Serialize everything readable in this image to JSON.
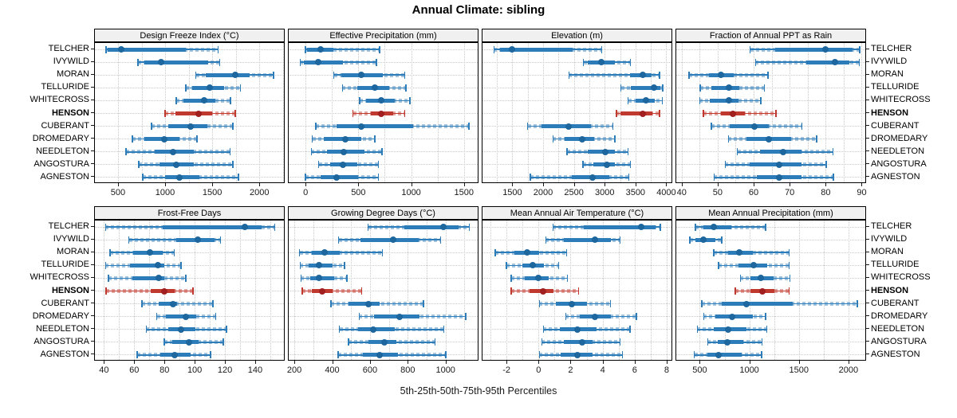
{
  "title": "Annual Climate: sibling",
  "caption": "5th-25th-50th-75th-95th Percentiles",
  "colors": {
    "blue_line": "#2b7cb9",
    "blue_dot": "#1d669e",
    "blue_band": "rgba(49,124,183,0.45)",
    "red_line": "#c0392f",
    "red_dot": "#a02020",
    "red_band": "rgba(192,57,47,0.45)",
    "grid": "#c8c8c8",
    "strip_bg": "#f0f0f0",
    "border": "#000000"
  },
  "chart_data": {
    "type": "horizontal-percentile-range (dot + box + whisker), 2x4 trellis panels",
    "percentiles": [
      "5th",
      "25th",
      "50th",
      "75th",
      "95th"
    ],
    "stations": [
      "TELCHER",
      "IVYWILD",
      "MORAN",
      "TELLURIDE",
      "WHITECROSS",
      "HENSON",
      "CUBERANT",
      "DROMEDARY",
      "NEEDLETON",
      "ANGOSTURA",
      "AGNESTON"
    ],
    "highlight_station": "HENSON",
    "legend_note": "values per station are [p5,p25,p50,p75,p95]",
    "panels": [
      {
        "title": "Design Freeze Index (°C)",
        "ticks": [
          500,
          1000,
          1500,
          2000
        ],
        "xlim": [
          255,
          2260
        ],
        "values": [
          [
            375,
            390,
            535,
            1220,
            1560
          ],
          [
            710,
            780,
            955,
            1460,
            1580
          ],
          [
            1327,
            1430,
            1745,
            1900,
            2152
          ],
          [
            1220,
            1290,
            1470,
            1625,
            1800
          ],
          [
            1119,
            1194,
            1411,
            1530,
            1694
          ],
          [
            1000,
            1110,
            1355,
            1500,
            1745
          ],
          [
            855,
            1030,
            1272,
            1444,
            1717
          ],
          [
            653,
            778,
            995,
            1153,
            1339
          ],
          [
            583,
            888,
            1088,
            1305,
            1689
          ],
          [
            722,
            944,
            1119,
            1305,
            1717
          ],
          [
            764,
            1000,
            1153,
            1360,
            1777
          ]
        ]
      },
      {
        "title": "Effective Precipitation (mm)",
        "ticks": [
          0,
          500,
          1000,
          1500
        ],
        "xlim": [
          -160,
          1630
        ],
        "values": [
          [
            0,
            15,
            140,
            265,
            700
          ],
          [
            -52,
            -20,
            117,
            350,
            670
          ],
          [
            268,
            340,
            530,
            730,
            938
          ],
          [
            348,
            490,
            655,
            790,
            950
          ],
          [
            513,
            570,
            713,
            845,
            988
          ],
          [
            448,
            620,
            713,
            830,
            938
          ],
          [
            98,
            290,
            530,
            1018,
            1548
          ],
          [
            63,
            170,
            375,
            530,
            655
          ],
          [
            55,
            205,
            363,
            555,
            723
          ],
          [
            125,
            230,
            355,
            490,
            688
          ],
          [
            0,
            140,
            293,
            500,
            688
          ]
        ]
      },
      {
        "title": "Elevation (m)",
        "ticks": [
          1500,
          2000,
          2500,
          3000,
          3500,
          4000
        ],
        "xlim": [
          1015,
          4085
        ],
        "values": [
          [
            1200,
            1300,
            1500,
            2480,
            2950
          ],
          [
            2655,
            2720,
            2940,
            3165,
            3420
          ],
          [
            2420,
            3410,
            3615,
            3760,
            3890
          ],
          [
            3265,
            3420,
            3800,
            3900,
            3940
          ],
          [
            3380,
            3500,
            3670,
            3810,
            3935
          ],
          [
            3190,
            3250,
            3625,
            3770,
            3890
          ],
          [
            1750,
            1970,
            2410,
            2780,
            3135
          ],
          [
            2160,
            2350,
            2630,
            2830,
            3165
          ],
          [
            2385,
            2730,
            3010,
            3170,
            3380
          ],
          [
            2645,
            2815,
            3030,
            3170,
            3415
          ],
          [
            1790,
            2470,
            2805,
            3070,
            3390
          ]
        ]
      },
      {
        "title": "Fraction of Annual PPT as Rain",
        "ticks": [
          40,
          50,
          60,
          70,
          80,
          90
        ],
        "xlim": [
          38.5,
          91
        ],
        "values": [
          [
            59,
            66,
            80,
            87.5,
            89.5
          ],
          [
            60.5,
            74.5,
            82.5,
            86.5,
            89.3
          ],
          [
            42,
            47.5,
            51,
            54.5,
            64
          ],
          [
            45.2,
            48.3,
            53.2,
            56,
            63
          ],
          [
            45,
            47.7,
            53.2,
            55.8,
            62
          ],
          [
            46,
            50.9,
            54.3,
            57.5,
            66.2
          ],
          [
            48.3,
            53.4,
            60.3,
            64.3,
            73.4
          ],
          [
            53,
            58,
            64.3,
            70.3,
            77.5
          ],
          [
            55.5,
            61.8,
            68.2,
            73.3,
            82
          ],
          [
            52.1,
            58.8,
            67,
            73.3,
            80.1
          ],
          [
            49,
            60.8,
            67,
            73.2,
            82.1
          ]
        ]
      },
      {
        "title": "Frost-Free Days",
        "ticks": [
          40,
          60,
          80,
          100,
          120,
          140
        ],
        "xlim": [
          34,
          159
        ],
        "values": [
          [
            41,
            79,
            133,
            144,
            153
          ],
          [
            56.5,
            88,
            102,
            113,
            117
          ],
          [
            44,
            59.5,
            70.5,
            79,
            86.5
          ],
          [
            41,
            57,
            75.5,
            80,
            91
          ],
          [
            43,
            59,
            76,
            80,
            94
          ],
          [
            41.5,
            71,
            80,
            86.5,
            99
          ],
          [
            65,
            76,
            85.5,
            88.5,
            112
          ],
          [
            75,
            81,
            94,
            101,
            114
          ],
          [
            68,
            82.5,
            91,
            100.5,
            121
          ],
          [
            80,
            85,
            96,
            102.5,
            119
          ],
          [
            62,
            77.5,
            87,
            97.5,
            110.5
          ]
        ]
      },
      {
        "title": "Growing Degree Days (°C)",
        "ticks": [
          200,
          400,
          600,
          800,
          1000
        ],
        "xlim": [
          170,
          1170
        ],
        "values": [
          [
            590,
            780,
            990,
            1070,
            1125
          ],
          [
            434,
            550,
            722,
            858,
            974
          ],
          [
            228,
            291,
            361,
            438,
            665
          ],
          [
            231,
            277,
            330,
            403,
            466
          ],
          [
            235,
            284,
            330,
            410,
            477
          ],
          [
            242,
            291,
            347,
            403,
            557
          ],
          [
            393,
            487,
            592,
            650,
            883
          ],
          [
            543,
            620,
            757,
            860,
            1107
          ],
          [
            438,
            536,
            617,
            732,
            991
          ],
          [
            487,
            592,
            676,
            739,
            945
          ],
          [
            431,
            564,
            652,
            746,
            1002
          ]
        ]
      },
      {
        "title": "Mean Annual Air Temperature (°C)",
        "ticks": [
          -2,
          0,
          2,
          4,
          6,
          8
        ],
        "xlim": [
          -3.5,
          8.3
        ],
        "values": [
          [
            0.9,
            2.8,
            6.4,
            7.3,
            7.6
          ],
          [
            0.45,
            1.6,
            3.5,
            4.5,
            5.1
          ],
          [
            -2.7,
            -1.5,
            -0.7,
            0.05,
            1.75
          ],
          [
            -2,
            -1,
            -0.35,
            0.35,
            1.25
          ],
          [
            -1.7,
            -0.85,
            0,
            0.65,
            1.8
          ],
          [
            -1.7,
            -0.55,
            0.3,
            0.95,
            2.5
          ],
          [
            0.05,
            1.1,
            2.1,
            3,
            4.5
          ],
          [
            1.7,
            2.55,
            3.5,
            4.5,
            6.1
          ],
          [
            0.3,
            1.35,
            2.4,
            3.6,
            5.7
          ],
          [
            0.2,
            1.6,
            2.7,
            3.35,
            5.1
          ],
          [
            0.05,
            1.4,
            2.4,
            3.35,
            5.25
          ]
        ]
      },
      {
        "title": "Mean Annual Precipitation (mm)",
        "ticks": [
          500,
          1000,
          1500,
          2000
        ],
        "xlim": [
          263,
          2170
        ],
        "values": [
          [
            455,
            540,
            645,
            820,
            1165
          ],
          [
            400,
            460,
            535,
            660,
            720
          ],
          [
            640,
            785,
            895,
            1035,
            1400
          ],
          [
            690,
            890,
            1040,
            1180,
            1400
          ],
          [
            910,
            1010,
            1115,
            1245,
            1410
          ],
          [
            860,
            1010,
            1130,
            1255,
            1400
          ],
          [
            520,
            720,
            975,
            1440,
            2090
          ],
          [
            540,
            660,
            830,
            1035,
            1165
          ],
          [
            475,
            645,
            785,
            970,
            1175
          ],
          [
            580,
            685,
            780,
            940,
            1130
          ],
          [
            445,
            580,
            690,
            920,
            1125
          ]
        ]
      }
    ]
  }
}
